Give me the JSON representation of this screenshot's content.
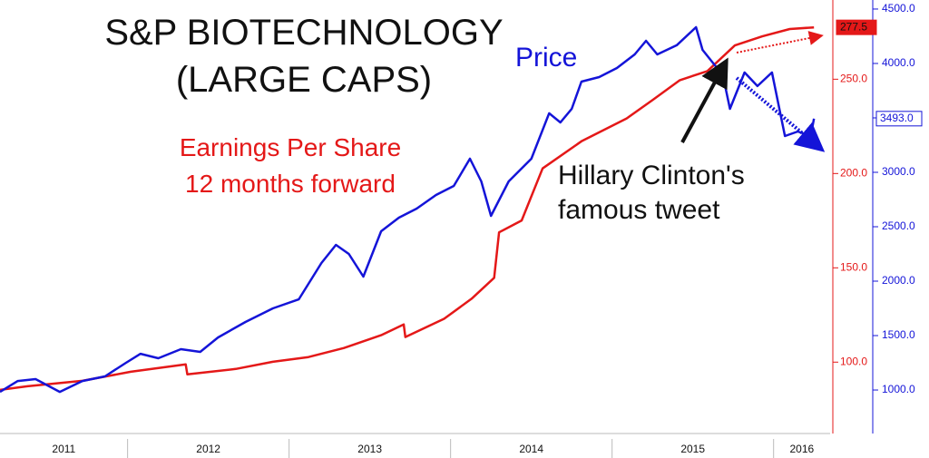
{
  "chart_data": {
    "type": "line",
    "title": "S&P BIOTECHNOLOGY\n(LARGE CAPS)",
    "annotation": "Hillary Clinton's\nfamous tweet",
    "xlim": [
      2011.21,
      2016.35
    ],
    "xticks": [
      {
        "value": 2011,
        "label": "2011"
      },
      {
        "value": 2012,
        "label": "2012"
      },
      {
        "value": 2013,
        "label": "2013"
      },
      {
        "value": 2014,
        "label": "2014"
      },
      {
        "value": 2015,
        "label": "2015"
      },
      {
        "value": 2016,
        "label": "2016"
      }
    ],
    "ylim": [
      66,
      292
    ],
    "yticks": [
      {
        "value": 100,
        "label": "100.0"
      },
      {
        "value": 150,
        "label": "150.0"
      },
      {
        "value": 200,
        "label": "200.0"
      },
      {
        "value": 250,
        "label": "250.0"
      }
    ],
    "y2lim": [
      667,
      4583
    ],
    "y2ticks": [
      {
        "value": 1000,
        "label": "1000.0"
      },
      {
        "value": 1500,
        "label": "1500.0"
      },
      {
        "value": 2000,
        "label": "2000.0"
      },
      {
        "value": 2500,
        "label": "2500.0"
      },
      {
        "value": 3000,
        "label": "3000.0"
      },
      {
        "value": 3500,
        "label": "3500.0"
      },
      {
        "value": 4000,
        "label": "4000.0"
      },
      {
        "value": 4500,
        "label": "4500.0"
      }
    ],
    "series": [
      {
        "name": "Earnings Per Share\n12 months forward",
        "color": "#e41818",
        "axis": "y",
        "x": [
          2011.21,
          2011.38,
          2011.72,
          2012.02,
          2012.36,
          2012.37,
          2012.67,
          2012.9,
          2013.12,
          2013.34,
          2013.57,
          2013.71,
          2013.72,
          2013.96,
          2014.13,
          2014.27,
          2014.3,
          2014.44,
          2014.57,
          2014.81,
          2015.09,
          2015.25,
          2015.42,
          2015.59,
          2015.76,
          2015.93,
          2016.1,
          2016.25
        ],
        "values": [
          85.3,
          87.2,
          90.1,
          94.9,
          98.8,
          93.5,
          96.4,
          100.2,
          102.7,
          107.5,
          114.3,
          120.0,
          113.3,
          123.0,
          133.6,
          144.7,
          168.8,
          175.1,
          202.7,
          217.1,
          229.2,
          238.9,
          249.5,
          254.3,
          267.9,
          272.7,
          276.6,
          277.5
        ],
        "value_labels": [
          null,
          null,
          null,
          null,
          null,
          null,
          null,
          null,
          null,
          null,
          null,
          null,
          null,
          null,
          null,
          null,
          null,
          null,
          null,
          null,
          null,
          null,
          null,
          null,
          null,
          null,
          null,
          "277.5"
        ]
      },
      {
        "name": "Price",
        "color": "#1414d8",
        "axis": "y2",
        "x": [
          2011.21,
          2011.32,
          2011.43,
          2011.58,
          2011.72,
          2011.86,
          2011.99,
          2012.08,
          2012.19,
          2012.33,
          2012.45,
          2012.56,
          2012.73,
          2012.9,
          2013.06,
          2013.2,
          2013.29,
          2013.37,
          2013.46,
          2013.57,
          2013.68,
          2013.79,
          2013.91,
          2014.02,
          2014.12,
          2014.19,
          2014.25,
          2014.36,
          2014.5,
          2014.61,
          2014.68,
          2014.75,
          2014.81,
          2014.92,
          2015.03,
          2015.14,
          2015.21,
          2015.28,
          2015.4,
          2015.52,
          2015.56,
          2015.65,
          2015.7,
          2015.73,
          2015.82,
          2015.9,
          2015.99,
          2016.07,
          2016.15,
          2016.23,
          2016.25
        ],
        "values": [
          983,
          1083,
          1100,
          983,
          1083,
          1125,
          1250,
          1333,
          1292,
          1375,
          1350,
          1483,
          1625,
          1750,
          1833,
          2167,
          2333,
          2250,
          2042,
          2458,
          2583,
          2667,
          2792,
          2875,
          3125,
          2917,
          2600,
          2917,
          3125,
          3542,
          3458,
          3583,
          3833,
          3875,
          3958,
          4083,
          4208,
          4083,
          4167,
          4333,
          4125,
          3958,
          3792,
          3583,
          3917,
          3792,
          3917,
          3333,
          3375,
          3333,
          3493
        ],
        "value_labels": [
          null,
          null,
          null,
          null,
          null,
          null,
          null,
          null,
          null,
          null,
          null,
          null,
          null,
          null,
          null,
          null,
          null,
          null,
          null,
          null,
          null,
          null,
          null,
          null,
          null,
          null,
          null,
          null,
          null,
          null,
          null,
          null,
          null,
          null,
          null,
          null,
          null,
          null,
          null,
          null,
          null,
          null,
          null,
          null,
          null,
          null,
          null,
          null,
          null,
          null,
          "3493.0"
        ]
      }
    ]
  }
}
